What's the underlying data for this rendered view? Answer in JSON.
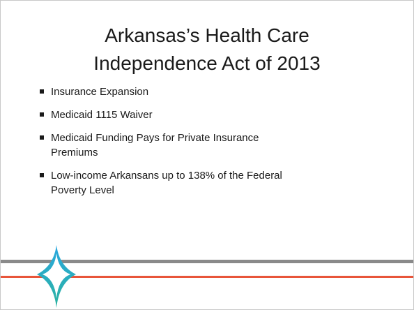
{
  "slide": {
    "title_lines": [
      "Arkansas’s Health Care",
      "Independence Act of 2013"
    ],
    "bullets": [
      [
        "Insurance Expansion"
      ],
      [
        "Medicaid 1115 Waiver"
      ],
      [
        "Medicaid Funding Pays for Private Insurance",
        "Premiums"
      ],
      [
        "Low-income Arkansans up to 138% of the Federal",
        "Poverty Level"
      ]
    ]
  }
}
